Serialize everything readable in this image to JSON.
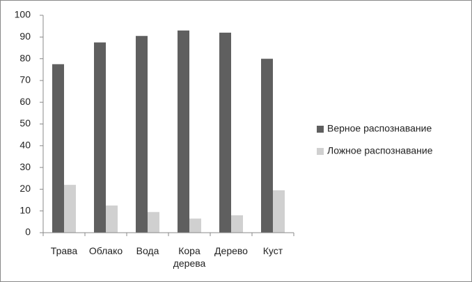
{
  "chart_data": {
    "type": "bar",
    "categories": [
      "Трава",
      "Облако",
      "Вода",
      "Кора дерева",
      "Дерево",
      "Куст"
    ],
    "series": [
      {
        "name": "Верное распознавание",
        "color": "#5f5f5f",
        "values": [
          77.5,
          87.5,
          90.5,
          93,
          92,
          80
        ]
      },
      {
        "name": "Ложное распознавание",
        "color": "#d0d0d0",
        "values": [
          22,
          12.5,
          9.5,
          6.5,
          8,
          19.5
        ]
      }
    ],
    "ylim": [
      0,
      100
    ],
    "yticks": [
      0,
      10,
      20,
      30,
      40,
      50,
      60,
      70,
      80,
      90,
      100
    ],
    "grid": false,
    "legend": "right"
  }
}
